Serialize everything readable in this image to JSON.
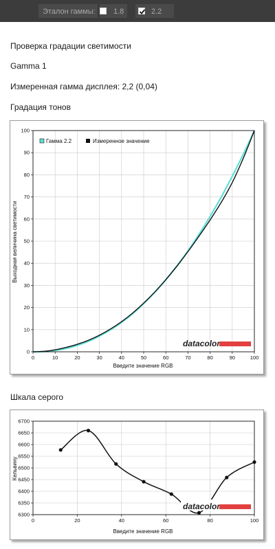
{
  "toolbar": {
    "label": "Эталон гаммы:",
    "options": [
      {
        "label": "1.8",
        "checked": false
      },
      {
        "label": "2.2",
        "checked": true
      }
    ]
  },
  "headings": {
    "section": "Проверка градации светимости",
    "profile": "Gamma 1",
    "measured": "Измеренная гамма дисплея: 2,2 (0,04)",
    "tone": "Градация тонов",
    "gray": "Шкала серого"
  },
  "logo": "datacolor",
  "colors": {
    "reference": "#5ee0d8",
    "measured": "#111111",
    "logo_bar": "#e24040"
  },
  "chart_data": [
    {
      "type": "line",
      "title": "Градация тонов",
      "xlabel": "Введите значение RGB",
      "ylabel": "Выходная величина светимости",
      "xlim": [
        0,
        100
      ],
      "ylim": [
        0,
        100
      ],
      "xticks": [
        0,
        10,
        20,
        30,
        40,
        50,
        60,
        70,
        80,
        90,
        100
      ],
      "yticks": [
        0,
        10,
        20,
        30,
        40,
        50,
        60,
        70,
        80,
        90,
        100
      ],
      "grid": true,
      "legend": "top-left",
      "series": [
        {
          "name": "Гамма 2.2",
          "x": [
            0,
            5,
            10,
            15,
            20,
            25,
            30,
            35,
            40,
            45,
            50,
            55,
            60,
            65,
            70,
            75,
            80,
            85,
            90,
            95,
            100
          ],
          "y": [
            0,
            0.1,
            0.6,
            1.5,
            2.9,
            4.7,
            7.1,
            9.9,
            13.3,
            17.2,
            21.8,
            26.9,
            32.6,
            38.8,
            45.6,
            53.1,
            61.2,
            69.9,
            79.3,
            89.3,
            100
          ]
        },
        {
          "name": "Измеренное значение",
          "x": [
            0,
            5,
            10,
            15,
            20,
            25,
            30,
            35,
            40,
            45,
            50,
            55,
            60,
            65,
            70,
            75,
            80,
            85,
            90,
            95,
            100
          ],
          "y": [
            0,
            0.2,
            0.9,
            2.0,
            3.4,
            5.2,
            7.5,
            10.3,
            13.6,
            17.5,
            22.0,
            27.0,
            32.6,
            38.7,
            45.3,
            52.3,
            59.6,
            67.5,
            76.5,
            87.5,
            100
          ]
        }
      ]
    },
    {
      "type": "line",
      "title": "Шкала серого",
      "xlabel": "Введите значение RGB",
      "ylabel": "Кельвину",
      "xlim": [
        0,
        100
      ],
      "ylim": [
        6300,
        6700
      ],
      "xticks": [
        0,
        20,
        40,
        60,
        80,
        100
      ],
      "yticks": [
        6300,
        6350,
        6400,
        6450,
        6500,
        6550,
        6600,
        6650,
        6700
      ],
      "grid": true,
      "series": [
        {
          "x": [
            12.5,
            25,
            37.5,
            50,
            62.5,
            75,
            87.5,
            100
          ],
          "y": [
            6577,
            6660,
            6517,
            6441,
            6388,
            6308,
            6459,
            6525
          ]
        }
      ]
    }
  ]
}
